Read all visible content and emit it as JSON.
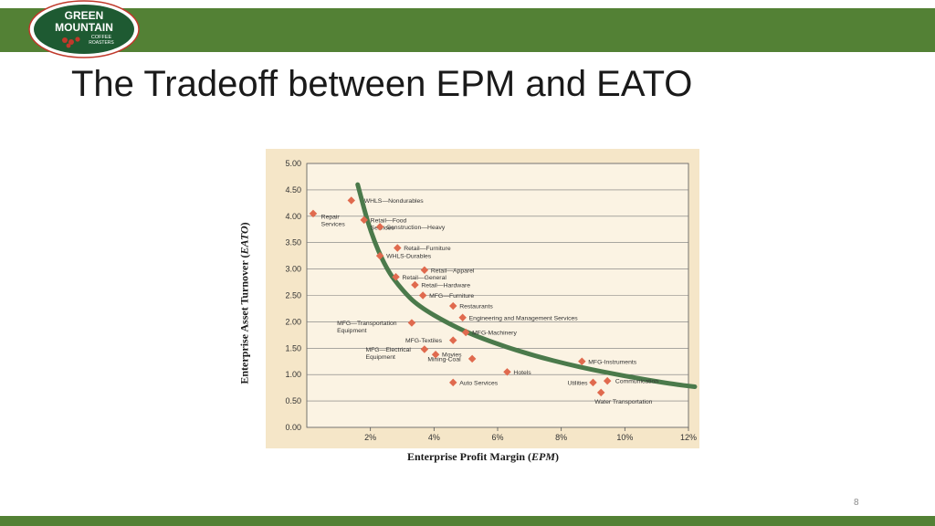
{
  "slide": {
    "title": "The Tradeoff between EPM and EATO",
    "page_number": "8"
  },
  "logo": {
    "line1": "GREEN",
    "line2": "MOUNTAIN",
    "line3": "COFFEE",
    "line4": "ROASTERS",
    "colors": {
      "badge": "#1e5a32",
      "ring": "#c0392b",
      "text": "#ffffff"
    }
  },
  "colors": {
    "bar": "#538135",
    "panel": "#f5e6c8",
    "curve": "#4b7a4b",
    "marker": "#e06a4e"
  },
  "chart_data": {
    "type": "scatter",
    "xlabel_main": "Enterprise Profit Margin (",
    "xlabel_em": "EPM",
    "xlabel_end": ")",
    "ylabel_main": "Enterprise Asset Turnover (",
    "ylabel_em": "EATO",
    "ylabel_end": ")",
    "xlim": [
      0,
      12
    ],
    "ylim": [
      0,
      5
    ],
    "xticks": [
      2,
      4,
      6,
      8,
      10,
      12
    ],
    "xtick_labels": [
      "2%",
      "4%",
      "6%",
      "8%",
      "10%",
      "12%"
    ],
    "yticks": [
      0,
      0.5,
      1,
      1.5,
      2,
      2.5,
      3,
      3.5,
      4,
      4.5,
      5
    ],
    "ytick_labels": [
      "0.00",
      "0.50",
      "1.00",
      "1.50",
      "2.00",
      "2.50",
      "3.00",
      "3.50",
      "4.00",
      "4.50",
      "5.00"
    ],
    "grid": "horizontal",
    "points": [
      {
        "label": [
          "Repair",
          "Services"
        ],
        "x": 0.2,
        "y": 4.05,
        "ldx": 0.25,
        "ldy": -0.05
      },
      {
        "label": [
          "WHLS—Nondurables"
        ],
        "x": 1.4,
        "y": 4.3,
        "ldx": 0.4,
        "ldy": 0.0
      },
      {
        "label": [
          "Retail—Food",
          "Services"
        ],
        "x": 1.8,
        "y": 3.93,
        "ldx": 0.2,
        "ldy": 0.0
      },
      {
        "label": [
          "Construction—Heavy"
        ],
        "x": 2.3,
        "y": 3.8,
        "ldx": 0.2,
        "ldy": 0.0
      },
      {
        "label": [
          "Retail—Furniture"
        ],
        "x": 2.85,
        "y": 3.4,
        "ldx": 0.2,
        "ldy": 0.0
      },
      {
        "label": [
          "WHLS-Durables"
        ],
        "x": 2.3,
        "y": 3.25,
        "ldx": 0.2,
        "ldy": 0.0
      },
      {
        "label": [
          "Retail—Apparel"
        ],
        "x": 3.7,
        "y": 2.98,
        "ldx": 0.2,
        "ldy": 0.0
      },
      {
        "label": [
          "Retail—General"
        ],
        "x": 2.8,
        "y": 2.85,
        "ldx": 0.2,
        "ldy": 0.0
      },
      {
        "label": [
          "Retail—Hardware"
        ],
        "x": 3.4,
        "y": 2.7,
        "ldx": 0.2,
        "ldy": 0.0
      },
      {
        "label": [
          "MFG—Furniture"
        ],
        "x": 3.65,
        "y": 2.5,
        "ldx": 0.2,
        "ldy": 0.0
      },
      {
        "label": [
          "Restaurants"
        ],
        "x": 4.6,
        "y": 2.3,
        "ldx": 0.2,
        "ldy": 0.0
      },
      {
        "label": [
          "Engineering and Management Services"
        ],
        "x": 4.9,
        "y": 2.08,
        "ldx": 0.2,
        "ldy": 0.0
      },
      {
        "label": [
          "MFG—Transportation",
          "Equipment"
        ],
        "x": 3.3,
        "y": 1.98,
        "ldx": -2.35,
        "ldy": 0.0
      },
      {
        "label": [
          "MFG-Machinery"
        ],
        "x": 5.0,
        "y": 1.8,
        "ldx": 0.2,
        "ldy": 0.0
      },
      {
        "label": [
          "MFG-Textiles"
        ],
        "x": 4.6,
        "y": 1.65,
        "ldx": -1.5,
        "ldy": 0.0
      },
      {
        "label": [
          "MFG—Electrical",
          "Equipment"
        ],
        "x": 3.7,
        "y": 1.48,
        "ldx": -1.85,
        "ldy": 0.0
      },
      {
        "label": [
          "Movies"
        ],
        "x": 4.05,
        "y": 1.38,
        "ldx": 0.2,
        "ldy": 0.0
      },
      {
        "label": [
          "Mining-Coal"
        ],
        "x": 5.2,
        "y": 1.3,
        "ldx": -1.4,
        "ldy": 0.0
      },
      {
        "label": [
          "MFG-Instruments"
        ],
        "x": 8.65,
        "y": 1.25,
        "ldx": 0.2,
        "ldy": 0.0
      },
      {
        "label": [
          "Hotels"
        ],
        "x": 6.3,
        "y": 1.05,
        "ldx": 0.2,
        "ldy": 0.0
      },
      {
        "label": [
          "Communication"
        ],
        "x": 9.45,
        "y": 0.88,
        "ldx": 0.25,
        "ldy": 0.0
      },
      {
        "label": [
          "Auto Services"
        ],
        "x": 4.6,
        "y": 0.85,
        "ldx": 0.2,
        "ldy": 0.0
      },
      {
        "label": [
          "Utilities"
        ],
        "x": 9.0,
        "y": 0.85,
        "ldx": -0.8,
        "ldy": 0.0
      },
      {
        "label": [
          "Water Transportation"
        ],
        "x": 9.25,
        "y": 0.66,
        "ldx": -0.2,
        "ldy": -0.17
      }
    ],
    "curve": [
      [
        1.6,
        4.6
      ],
      [
        2.0,
        3.7
      ],
      [
        2.5,
        3.0
      ],
      [
        3.0,
        2.6
      ],
      [
        3.5,
        2.3
      ],
      [
        4.5,
        1.95
      ],
      [
        5.5,
        1.68
      ],
      [
        7.0,
        1.38
      ],
      [
        8.5,
        1.15
      ],
      [
        10.0,
        0.97
      ],
      [
        11.5,
        0.82
      ],
      [
        12.2,
        0.77
      ]
    ]
  }
}
